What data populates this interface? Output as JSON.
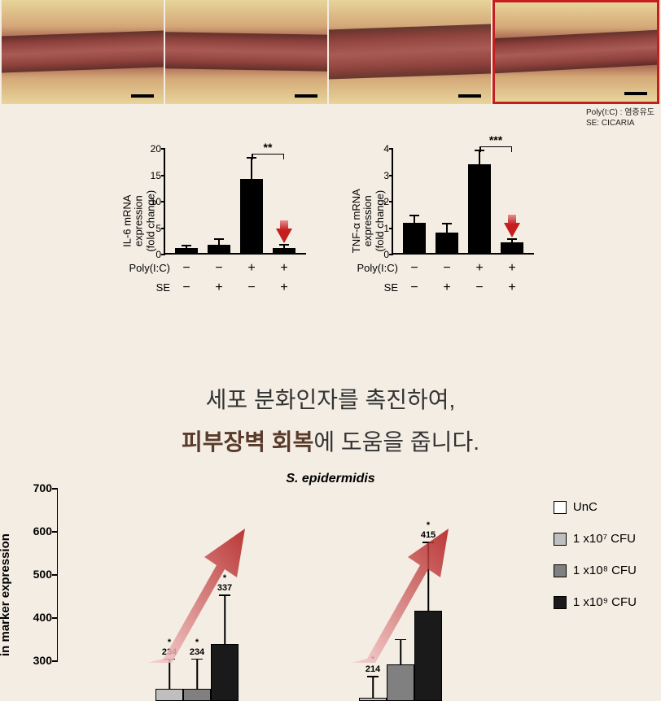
{
  "histology": {
    "panels": 4,
    "highlighted_index": 3,
    "legend_line1": "Poly(I:C) : 염증유도",
    "legend_line2": "SE: CICARIA"
  },
  "mini_charts": [
    {
      "ylabel_line1": "IL-6 mRNA",
      "ylabel_line2": "expression",
      "ylabel_line3": "(fold change)",
      "ymax": 20,
      "ytick_step": 5,
      "yticks": [
        0,
        5,
        10,
        15,
        20
      ],
      "bars": [
        {
          "value": 1.0,
          "error": 0.3
        },
        {
          "value": 1.5,
          "error": 0.9
        },
        {
          "value": 14.0,
          "error": 3.8
        },
        {
          "value": 1.0,
          "error": 0.4
        }
      ],
      "sig_label": "**",
      "sig_from": 2,
      "sig_to": 3,
      "arrow_index": 3,
      "conditions": {
        "polyic": [
          "−",
          "−",
          "+",
          "+"
        ],
        "se": [
          "−",
          "+",
          "−",
          "+"
        ]
      }
    },
    {
      "ylabel_line1": "TNF-α mRNA",
      "ylabel_line2": "expression",
      "ylabel_line3": "(fold change)",
      "ymax": 4,
      "ytick_step": 1,
      "yticks": [
        0,
        1,
        2,
        3,
        4
      ],
      "bars": [
        {
          "value": 1.15,
          "error": 0.25
        },
        {
          "value": 0.78,
          "error": 0.3
        },
        {
          "value": 3.35,
          "error": 0.5
        },
        {
          "value": 0.4,
          "error": 0.1
        }
      ],
      "sig_label": "***",
      "sig_from": 2,
      "sig_to": 3,
      "arrow_index": 3,
      "conditions": {
        "polyic": [
          "−",
          "−",
          "+",
          "+"
        ],
        "se": [
          "−",
          "+",
          "−",
          "+"
        ]
      }
    }
  ],
  "condition_labels": {
    "polyic": "Poly(I:C)",
    "se": "SE"
  },
  "main_text": {
    "line1": "세포 분화인자를 촉진하여,",
    "line2_bold": "피부장벽 회복",
    "line2_rest": "에 도움을 줍니다."
  },
  "bottom_chart": {
    "title": "S. epidermidis",
    "ylabel": "in marker expression",
    "ymin": 300,
    "ymax": 700,
    "yticks": [
      300,
      400,
      500,
      600,
      700
    ],
    "legend": [
      {
        "label": "UnC",
        "fill": "#ffffff"
      },
      {
        "label": "1 x10⁷ CFU",
        "fill": "#bfbfbf"
      },
      {
        "label": "1 x10⁸ CFU",
        "fill": "#808080"
      },
      {
        "label": "1 x10⁹ CFU",
        "fill": "#1a1a1a"
      }
    ],
    "groups": [
      {
        "x": 120,
        "bars": [
          {
            "value": 234,
            "error": 70,
            "label": "234",
            "star": "*",
            "fill": "#bfbfbf"
          },
          {
            "value": 234,
            "error": 70,
            "label": "234",
            "star": "*",
            "fill": "#808080"
          },
          {
            "value": 337,
            "error": 115,
            "label": "337",
            "star": "*",
            "fill": "#1a1a1a"
          }
        ]
      },
      {
        "x": 370,
        "bars": [
          {
            "value": 214,
            "error": 50,
            "label": "214",
            "star": "*",
            "fill": "#bfbfbf"
          },
          {
            "value": 290,
            "error": 60,
            "label": "",
            "star": "",
            "fill": "#808080"
          },
          {
            "value": 415,
            "error": 160,
            "label": "415",
            "star": "*",
            "fill": "#1a1a1a"
          }
        ]
      }
    ],
    "arrow_color_start": "#f5d0d0",
    "arrow_color_end": "#b01818"
  },
  "colors": {
    "background": "#f3ede3",
    "bar_black": "#000000",
    "highlight_red": "#c41e1e",
    "text_dark": "#333333",
    "text_bold": "#5a3a2a"
  }
}
